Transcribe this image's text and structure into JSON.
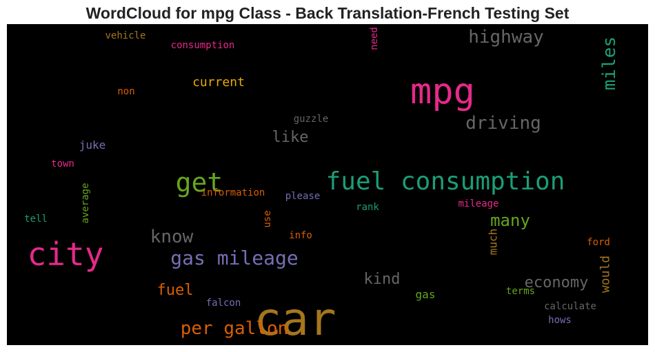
{
  "chart_data": {
    "type": "wordcloud",
    "title": "WordCloud for mpg Class - Back Translation-French Testing Set",
    "background": "#000000",
    "words": [
      {
        "text": "car",
        "color": "#a6761d",
        "orientation": "horizontal"
      },
      {
        "text": "mpg",
        "color": "#e7298a",
        "orientation": "horizontal"
      },
      {
        "text": "city",
        "color": "#e7298a",
        "orientation": "horizontal"
      },
      {
        "text": "fuel consumption",
        "color": "#1b9e77",
        "orientation": "horizontal"
      },
      {
        "text": "get",
        "color": "#66a61e",
        "orientation": "horizontal"
      },
      {
        "text": "gas mileage",
        "color": "#7570b3",
        "orientation": "horizontal"
      },
      {
        "text": "highway",
        "color": "#666666",
        "orientation": "horizontal"
      },
      {
        "text": "driving",
        "color": "#666666",
        "orientation": "horizontal"
      },
      {
        "text": "miles",
        "color": "#1b9e77",
        "orientation": "vertical"
      },
      {
        "text": "per gallon",
        "color": "#d95f02",
        "orientation": "horizontal"
      },
      {
        "text": "know",
        "color": "#666666",
        "orientation": "horizontal"
      },
      {
        "text": "many",
        "color": "#66a61e",
        "orientation": "horizontal"
      },
      {
        "text": "economy",
        "color": "#666666",
        "orientation": "horizontal"
      },
      {
        "text": "kind",
        "color": "#666666",
        "orientation": "horizontal"
      },
      {
        "text": "fuel",
        "color": "#d95f02",
        "orientation": "horizontal"
      },
      {
        "text": "like",
        "color": "#666666",
        "orientation": "horizontal"
      },
      {
        "text": "current",
        "color": "#e6ab02",
        "orientation": "horizontal"
      },
      {
        "text": "would",
        "color": "#a6761d",
        "orientation": "vertical"
      },
      {
        "text": "much",
        "color": "#a6761d",
        "orientation": "vertical"
      },
      {
        "text": "juke",
        "color": "#7570b3",
        "orientation": "horizontal"
      },
      {
        "text": "gas",
        "color": "#66a61e",
        "orientation": "horizontal"
      },
      {
        "text": "consumption",
        "color": "#e7298a",
        "orientation": "horizontal"
      },
      {
        "text": "vehicle",
        "color": "#a6761d",
        "orientation": "horizontal"
      },
      {
        "text": "need",
        "color": "#e7298a",
        "orientation": "vertical"
      },
      {
        "text": "non",
        "color": "#d95f02",
        "orientation": "horizontal"
      },
      {
        "text": "guzzle",
        "color": "#666666",
        "orientation": "horizontal"
      },
      {
        "text": "town",
        "color": "#e7298a",
        "orientation": "horizontal"
      },
      {
        "text": "average",
        "color": "#66a61e",
        "orientation": "vertical"
      },
      {
        "text": "information",
        "color": "#d95f02",
        "orientation": "horizontal"
      },
      {
        "text": "please",
        "color": "#7570b3",
        "orientation": "horizontal"
      },
      {
        "text": "rank",
        "color": "#1b9e77",
        "orientation": "horizontal"
      },
      {
        "text": "mileage",
        "color": "#e7298a",
        "orientation": "horizontal"
      },
      {
        "text": "tell",
        "color": "#1b9e77",
        "orientation": "horizontal"
      },
      {
        "text": "use",
        "color": "#d95f02",
        "orientation": "vertical"
      },
      {
        "text": "info",
        "color": "#d95f02",
        "orientation": "horizontal"
      },
      {
        "text": "ford",
        "color": "#d95f02",
        "orientation": "horizontal"
      },
      {
        "text": "terms",
        "color": "#66a61e",
        "orientation": "horizontal"
      },
      {
        "text": "calculate",
        "color": "#666666",
        "orientation": "horizontal"
      },
      {
        "text": "falcon",
        "color": "#7570b3",
        "orientation": "horizontal"
      },
      {
        "text": "hows",
        "color": "#7570b3",
        "orientation": "horizontal"
      }
    ]
  }
}
